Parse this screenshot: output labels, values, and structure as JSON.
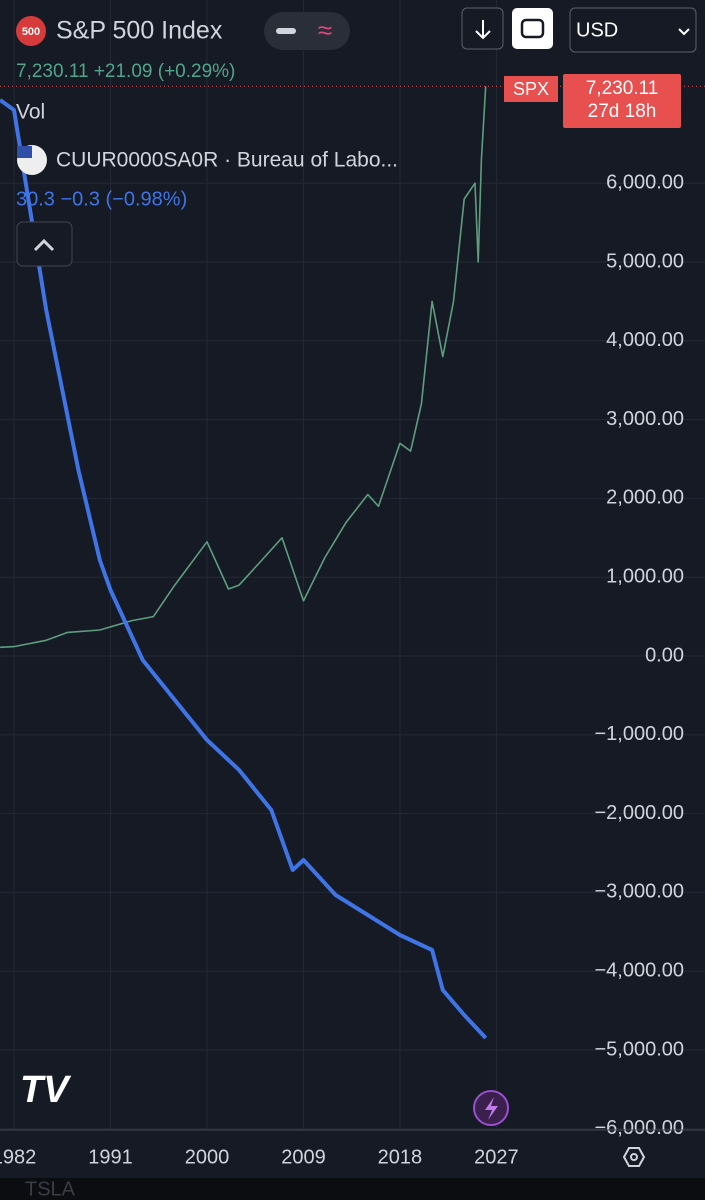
{
  "header": {
    "badge": "500",
    "title": "S&P 500 Index",
    "quote": "7,230.11 +21.09 (+0.29%)",
    "vol": "Vol",
    "overlay_name": "CUUR0000SA0R · Bureau of Labo...",
    "overlay_quote": "30.3 −0.3 (−0.98%)",
    "currency": "USD",
    "symbol_tag": "SPX",
    "price_tag": "7,230.11",
    "countdown": "27d 18h",
    "footer": "TSLA"
  },
  "chart_data": {
    "type": "line",
    "xlim": [
      1980.69,
      2033.4
    ],
    "xticks": [
      {
        "value": 1982,
        "label": "1982"
      },
      {
        "value": 1991,
        "label": "1991"
      },
      {
        "value": 2000,
        "label": "2000"
      },
      {
        "value": 2009,
        "label": "2009"
      },
      {
        "value": 2018,
        "label": "2018"
      },
      {
        "value": 2027,
        "label": "2027"
      }
    ],
    "ylim": [
      -6015,
      8325
    ],
    "yticks": [
      {
        "value": -6000,
        "label": "−6,000.00"
      },
      {
        "value": -5000,
        "label": "−5,000.00"
      },
      {
        "value": -4000,
        "label": "−4,000.00"
      },
      {
        "value": -3000,
        "label": "−3,000.00"
      },
      {
        "value": -2000,
        "label": "−2,000.00"
      },
      {
        "value": -1000,
        "label": "−1,000.00"
      },
      {
        "value": 0,
        "label": "0.00"
      },
      {
        "value": 1000,
        "label": "1,000.00"
      },
      {
        "value": 2000,
        "label": "2,000.00"
      },
      {
        "value": 3000,
        "label": "3,000.00"
      },
      {
        "value": 4000,
        "label": "4,000.00"
      },
      {
        "value": 5000,
        "label": "5,000.00"
      },
      {
        "value": 6000,
        "label": "6,000.00"
      }
    ],
    "grid": true,
    "series": [
      {
        "name": "SPX",
        "color": "#5d9e7e",
        "x": [
          1980.7,
          1982,
          1985,
          1987,
          1990,
          1993,
          1995,
          1997,
          2000,
          2002,
          2003,
          2005,
          2007,
          2009,
          2011,
          2013,
          2015,
          2016,
          2018,
          2019,
          2020,
          2021,
          2022,
          2023,
          2024,
          2025,
          2025.3,
          2025.6,
          2026
        ],
        "values": [
          110,
          120,
          200,
          300,
          330,
          450,
          500,
          900,
          1450,
          850,
          900,
          1200,
          1500,
          700,
          1250,
          1700,
          2050,
          1900,
          2700,
          2600,
          3200,
          4500,
          3800,
          4500,
          5800,
          6000,
          5000,
          6300,
          7230.11
        ]
      },
      {
        "name": "CUUR0000SA0R",
        "color": "#3f74e6",
        "x": [
          1980.7,
          1982,
          1985,
          1988,
          1990,
          1991,
          1994,
          1997,
          2000,
          2003,
          2006,
          2008,
          2009,
          2012,
          2015,
          2018,
          2021,
          2022,
          2024,
          2026
        ],
        "values": [
          7056,
          6929,
          4391,
          2360,
          1218,
          838,
          -51,
          -558,
          -1066,
          -1447,
          -1954,
          -2716,
          -2589,
          -3033,
          -3287,
          -3541,
          -3731,
          -4239,
          -4556,
          -4848
        ]
      }
    ]
  }
}
